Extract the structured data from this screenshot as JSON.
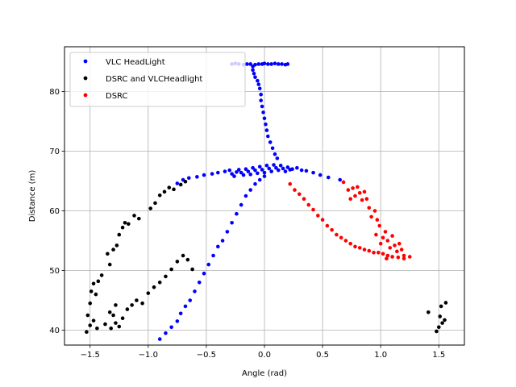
{
  "chart_data": {
    "type": "scatter",
    "xlabel": "Angle (rad)",
    "ylabel": "Distance (m)",
    "xlim": [
      -1.72,
      1.72
    ],
    "ylim": [
      37.5,
      87.5
    ],
    "xticks": [
      -1.5,
      -1.0,
      -0.5,
      0.0,
      0.5,
      1.0,
      1.5
    ],
    "xtick_labels": [
      "−1.5",
      "−1.0",
      "−0.5",
      "0.0",
      "0.5",
      "1.0",
      "1.5"
    ],
    "yticks": [
      40,
      50,
      60,
      70,
      80
    ],
    "ytick_labels": [
      "40",
      "50",
      "60",
      "70",
      "80"
    ],
    "grid": true,
    "legend_position": "top-left",
    "series": [
      {
        "name": "VLC HeadLight",
        "color": "#0000ff",
        "points": [
          [
            -0.28,
            84.6
          ],
          [
            -0.25,
            84.7
          ],
          [
            -0.22,
            84.6
          ],
          [
            -0.18,
            84.5
          ],
          [
            -0.15,
            84.6
          ],
          [
            -0.12,
            84.6
          ],
          [
            -0.08,
            84.5
          ],
          [
            -0.05,
            84.6
          ],
          [
            -0.02,
            84.6
          ],
          [
            0.0,
            84.7
          ],
          [
            0.03,
            84.6
          ],
          [
            0.06,
            84.6
          ],
          [
            0.09,
            84.7
          ],
          [
            0.12,
            84.6
          ],
          [
            0.15,
            84.6
          ],
          [
            0.18,
            84.5
          ],
          [
            0.2,
            84.6
          ],
          [
            -0.1,
            84.2
          ],
          [
            -0.1,
            83.6
          ],
          [
            -0.09,
            83.0
          ],
          [
            -0.08,
            82.4
          ],
          [
            -0.06,
            81.8
          ],
          [
            -0.05,
            81.2
          ],
          [
            -0.04,
            80.5
          ],
          [
            -0.03,
            79.5
          ],
          [
            -0.03,
            78.5
          ],
          [
            -0.02,
            77.5
          ],
          [
            -0.01,
            76.5
          ],
          [
            0.0,
            75.5
          ],
          [
            0.01,
            74.5
          ],
          [
            0.02,
            73.5
          ],
          [
            0.03,
            72.5
          ],
          [
            0.05,
            71.5
          ],
          [
            0.07,
            70.5
          ],
          [
            0.09,
            69.5
          ],
          [
            0.11,
            68.8
          ],
          [
            -0.75,
            64.6
          ],
          [
            -0.7,
            65.2
          ],
          [
            -0.65,
            65.5
          ],
          [
            -0.58,
            65.7
          ],
          [
            -0.52,
            66.0
          ],
          [
            -0.45,
            66.2
          ],
          [
            -0.4,
            66.4
          ],
          [
            -0.34,
            66.6
          ],
          [
            -0.3,
            66.8
          ],
          [
            -0.28,
            66.2
          ],
          [
            -0.26,
            65.8
          ],
          [
            -0.24,
            66.5
          ],
          [
            -0.22,
            66.9
          ],
          [
            -0.2,
            66.4
          ],
          [
            -0.18,
            66.0
          ],
          [
            -0.16,
            67.0
          ],
          [
            -0.14,
            66.6
          ],
          [
            -0.12,
            66.1
          ],
          [
            -0.1,
            67.2
          ],
          [
            -0.08,
            66.8
          ],
          [
            -0.06,
            66.3
          ],
          [
            -0.04,
            67.4
          ],
          [
            -0.02,
            66.9
          ],
          [
            0.0,
            66.4
          ],
          [
            0.02,
            67.6
          ],
          [
            0.04,
            67.1
          ],
          [
            0.06,
            66.6
          ],
          [
            0.08,
            67.7
          ],
          [
            0.1,
            67.2
          ],
          [
            0.12,
            66.8
          ],
          [
            0.14,
            67.6
          ],
          [
            0.16,
            67.1
          ],
          [
            0.18,
            66.6
          ],
          [
            0.2,
            67.3
          ],
          [
            0.22,
            66.9
          ],
          [
            0.24,
            67.0
          ],
          [
            0.28,
            67.2
          ],
          [
            0.32,
            66.8
          ],
          [
            0.36,
            66.7
          ],
          [
            0.42,
            66.4
          ],
          [
            0.48,
            66.0
          ],
          [
            0.55,
            65.6
          ],
          [
            0.65,
            65.2
          ],
          [
            -0.9,
            38.5
          ],
          [
            -0.85,
            39.5
          ],
          [
            -0.8,
            40.5
          ],
          [
            -0.75,
            41.5
          ],
          [
            -0.72,
            42.8
          ],
          [
            -0.68,
            44.0
          ],
          [
            -0.64,
            45.0
          ],
          [
            -0.6,
            46.5
          ],
          [
            -0.56,
            48.0
          ],
          [
            -0.52,
            49.5
          ],
          [
            -0.48,
            51.0
          ],
          [
            -0.44,
            52.5
          ],
          [
            -0.4,
            54.0
          ],
          [
            -0.36,
            55.0
          ],
          [
            -0.32,
            56.5
          ],
          [
            -0.28,
            58.0
          ],
          [
            -0.24,
            59.5
          ],
          [
            -0.2,
            61.0
          ],
          [
            -0.16,
            62.5
          ],
          [
            -0.12,
            63.5
          ],
          [
            -0.08,
            64.5
          ],
          [
            -0.04,
            65.2
          ],
          [
            0.0,
            65.8
          ]
        ]
      },
      {
        "name": "DSRC and VLCHeadlight",
        "color": "#000000",
        "points": [
          [
            -1.53,
            39.7
          ],
          [
            -1.5,
            40.8
          ],
          [
            -1.47,
            41.6
          ],
          [
            -1.44,
            40.3
          ],
          [
            -1.52,
            42.5
          ],
          [
            -1.5,
            44.5
          ],
          [
            -1.49,
            46.5
          ],
          [
            -1.47,
            47.8
          ],
          [
            -1.45,
            46.0
          ],
          [
            -1.43,
            48.2
          ],
          [
            -1.4,
            49.2
          ],
          [
            -1.35,
            52.8
          ],
          [
            -1.33,
            51.0
          ],
          [
            -1.3,
            53.5
          ],
          [
            -1.27,
            54.2
          ],
          [
            -1.25,
            56.0
          ],
          [
            -1.22,
            57.2
          ],
          [
            -1.2,
            58.0
          ],
          [
            -1.17,
            57.8
          ],
          [
            -1.12,
            59.2
          ],
          [
            -1.08,
            58.7
          ],
          [
            -0.98,
            60.4
          ],
          [
            -0.94,
            61.3
          ],
          [
            -0.9,
            62.6
          ],
          [
            -0.86,
            63.2
          ],
          [
            -0.82,
            63.9
          ],
          [
            -0.78,
            63.6
          ],
          [
            -0.72,
            64.4
          ],
          [
            -0.68,
            64.9
          ],
          [
            -1.32,
            40.3
          ],
          [
            -1.28,
            41.2
          ],
          [
            -1.25,
            40.6
          ],
          [
            -1.22,
            42.0
          ],
          [
            -1.18,
            43.5
          ],
          [
            -1.14,
            44.2
          ],
          [
            -1.1,
            45.0
          ],
          [
            -1.05,
            44.5
          ],
          [
            -1.0,
            46.2
          ],
          [
            -0.95,
            47.2
          ],
          [
            -0.9,
            48.0
          ],
          [
            -0.85,
            49.0
          ],
          [
            -0.8,
            50.2
          ],
          [
            -0.75,
            51.5
          ],
          [
            -0.7,
            52.5
          ],
          [
            -0.66,
            51.8
          ],
          [
            -0.62,
            50.2
          ],
          [
            -1.33,
            43.0
          ],
          [
            -1.3,
            42.5
          ],
          [
            -1.28,
            44.2
          ],
          [
            -1.37,
            41.0
          ],
          [
            1.41,
            43.0
          ],
          [
            1.48,
            39.8
          ],
          [
            1.5,
            40.5
          ],
          [
            1.51,
            42.3
          ],
          [
            1.53,
            41.2
          ],
          [
            1.55,
            41.7
          ],
          [
            1.52,
            44.0
          ],
          [
            1.56,
            44.6
          ]
        ]
      },
      {
        "name": "DSRC",
        "color": "#ff0000",
        "points": [
          [
            0.22,
            64.5
          ],
          [
            0.26,
            63.5
          ],
          [
            0.3,
            62.8
          ],
          [
            0.34,
            62.0
          ],
          [
            0.38,
            61.0
          ],
          [
            0.42,
            60.2
          ],
          [
            0.46,
            59.2
          ],
          [
            0.5,
            58.5
          ],
          [
            0.54,
            57.5
          ],
          [
            0.58,
            56.8
          ],
          [
            0.62,
            56.0
          ],
          [
            0.66,
            55.5
          ],
          [
            0.7,
            55.0
          ],
          [
            0.74,
            54.5
          ],
          [
            0.78,
            54.0
          ],
          [
            0.82,
            53.8
          ],
          [
            0.86,
            53.5
          ],
          [
            0.9,
            53.3
          ],
          [
            0.94,
            53.0
          ],
          [
            0.98,
            53.0
          ],
          [
            1.02,
            52.8
          ],
          [
            1.06,
            52.5
          ],
          [
            1.1,
            52.3
          ],
          [
            1.15,
            52.2
          ],
          [
            1.2,
            52.0
          ],
          [
            1.25,
            52.3
          ],
          [
            0.68,
            64.8
          ],
          [
            0.72,
            63.5
          ],
          [
            0.74,
            62.0
          ],
          [
            0.76,
            63.8
          ],
          [
            0.78,
            62.5
          ],
          [
            0.8,
            64.0
          ],
          [
            0.82,
            63.0
          ],
          [
            0.84,
            61.8
          ],
          [
            0.86,
            63.2
          ],
          [
            0.88,
            62.0
          ],
          [
            0.9,
            60.5
          ],
          [
            0.92,
            59.0
          ],
          [
            0.95,
            60.0
          ],
          [
            0.97,
            58.5
          ],
          [
            0.99,
            57.5
          ],
          [
            1.02,
            55.5
          ],
          [
            1.04,
            56.5
          ],
          [
            1.06,
            55.0
          ],
          [
            1.08,
            53.8
          ],
          [
            1.1,
            55.8
          ],
          [
            1.12,
            54.2
          ],
          [
            1.14,
            53.2
          ],
          [
            1.16,
            54.5
          ],
          [
            1.18,
            53.5
          ],
          [
            1.2,
            52.5
          ],
          [
            0.96,
            56.0
          ],
          [
            1.0,
            54.5
          ],
          [
            1.05,
            52.0
          ]
        ]
      }
    ]
  }
}
